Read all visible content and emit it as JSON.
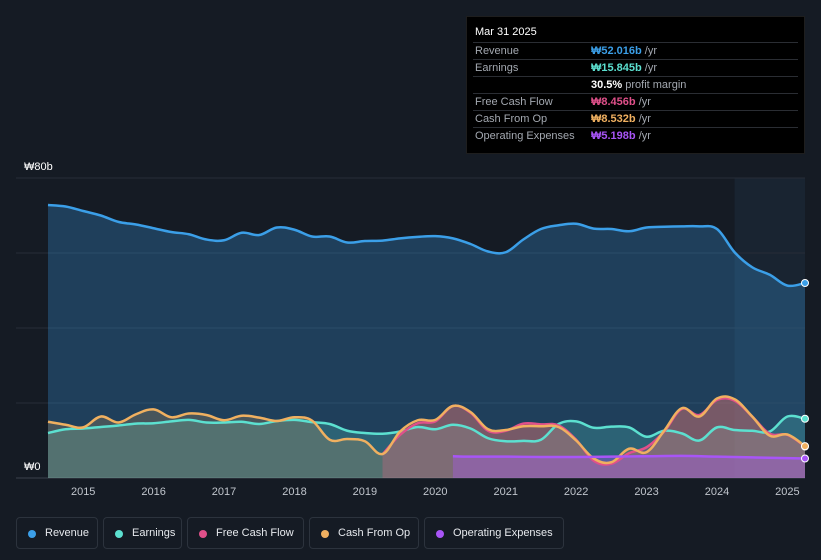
{
  "tooltip": {
    "date": "Mar 31 2025",
    "rows": [
      {
        "label": "Revenue",
        "value": "₩52.016b",
        "unit": "/yr",
        "color": "#3b9fe8"
      },
      {
        "label": "Earnings",
        "value": "₩15.845b",
        "unit": "/yr",
        "color": "#5ce0d0"
      },
      {
        "label": "",
        "value": "30.5%",
        "unit": "profit margin",
        "color": "#ffffff"
      },
      {
        "label": "Free Cash Flow",
        "value": "₩8.456b",
        "unit": "/yr",
        "color": "#e0508a"
      },
      {
        "label": "Cash From Op",
        "value": "₩8.532b",
        "unit": "/yr",
        "color": "#f0b060"
      },
      {
        "label": "Operating Expenses",
        "value": "₩5.198b",
        "unit": "/yr",
        "color": "#a855f7"
      }
    ]
  },
  "legend": [
    {
      "label": "Revenue",
      "color": "#3b9fe8"
    },
    {
      "label": "Earnings",
      "color": "#5ce0d0"
    },
    {
      "label": "Free Cash Flow",
      "color": "#e0508a"
    },
    {
      "label": "Cash From Op",
      "color": "#f0b060"
    },
    {
      "label": "Operating Expenses",
      "color": "#a855f7"
    }
  ],
  "chart_data": {
    "type": "area",
    "y_top_label": "₩80b",
    "y_bottom_label": "₩0",
    "ylim": [
      0,
      80
    ],
    "xlim": [
      2014.5,
      2025.25
    ],
    "x_ticks": [
      "2015",
      "2016",
      "2017",
      "2018",
      "2019",
      "2020",
      "2021",
      "2022",
      "2023",
      "2024",
      "2025"
    ],
    "forecast_start": 2024.25,
    "series": [
      {
        "name": "Revenue",
        "color": "#3b9fe8",
        "x": [
          2014.5,
          2014.75,
          2015.0,
          2015.25,
          2015.5,
          2015.75,
          2016.0,
          2016.25,
          2016.5,
          2016.75,
          2017.0,
          2017.25,
          2017.5,
          2017.75,
          2018.0,
          2018.25,
          2018.5,
          2018.75,
          2019.0,
          2019.25,
          2019.5,
          2019.75,
          2020.0,
          2020.25,
          2020.5,
          2020.75,
          2021.0,
          2021.25,
          2021.5,
          2021.75,
          2022.0,
          2022.25,
          2022.5,
          2022.75,
          2023.0,
          2023.25,
          2023.5,
          2023.75,
          2024.0,
          2024.25,
          2024.5,
          2024.75,
          2025.0,
          2025.25
        ],
        "y": [
          72.8,
          72.4,
          71.2,
          70,
          68.3,
          67.6,
          66.6,
          65.6,
          65,
          63.6,
          63.4,
          65.4,
          64.8,
          66.8,
          66.2,
          64.4,
          64.4,
          62.8,
          63.2,
          63.3,
          63.9,
          64.3,
          64.5,
          63.9,
          62.4,
          60.4,
          60.2,
          63.6,
          66.4,
          67.4,
          67.8,
          66.5,
          66.4,
          65.8,
          66.8,
          67,
          67.1,
          67.1,
          66.4,
          60.2,
          56.2,
          54.2,
          51.3,
          52
        ]
      },
      {
        "name": "Earnings",
        "color": "#5ce0d0",
        "x": [
          2014.5,
          2014.75,
          2015.0,
          2015.25,
          2015.5,
          2015.75,
          2016.0,
          2016.25,
          2016.5,
          2016.75,
          2017.0,
          2017.25,
          2017.5,
          2017.75,
          2018.0,
          2018.25,
          2018.5,
          2018.75,
          2019.0,
          2019.25,
          2019.5,
          2019.75,
          2020.0,
          2020.25,
          2020.5,
          2020.75,
          2021.0,
          2021.25,
          2021.5,
          2021.75,
          2022.0,
          2022.25,
          2022.5,
          2022.75,
          2023.0,
          2023.25,
          2023.5,
          2023.75,
          2024.0,
          2024.25,
          2024.5,
          2024.75,
          2025.0,
          2025.25
        ],
        "y": [
          12,
          13,
          13.2,
          13.6,
          14,
          14.5,
          14.6,
          15.1,
          15.5,
          14.8,
          14.8,
          15,
          14.4,
          15.2,
          15.5,
          14.9,
          14.4,
          12.6,
          12,
          11.8,
          12.4,
          13.6,
          13,
          14.2,
          13.2,
          10.6,
          9.8,
          9.9,
          10.2,
          14.4,
          15.1,
          13.4,
          13.7,
          13.5,
          11,
          12.6,
          11.9,
          10,
          13.5,
          12.8,
          12.6,
          12.4,
          16.4,
          15.8
        ]
      },
      {
        "name": "Free Cash Flow",
        "color": "#e0508a",
        "x": [
          2019.25,
          2019.5,
          2019.75,
          2020.0,
          2020.25,
          2020.5,
          2020.75,
          2021.0,
          2021.25,
          2021.5,
          2021.75,
          2022.0,
          2022.25,
          2022.5,
          2022.75,
          2023.0,
          2023.25,
          2023.5,
          2023.75,
          2024.0,
          2024.25,
          2024.5,
          2024.75,
          2025.0,
          2025.25
        ],
        "y": [
          6.3,
          11.5,
          14.6,
          15.1,
          19.2,
          17.4,
          12.6,
          12.6,
          14.5,
          14.3,
          14,
          10.2,
          4.6,
          3.8,
          6.6,
          8.2,
          12.4,
          18.4,
          16.8,
          20.8,
          20.6,
          16.4,
          11.8,
          11.5,
          8.4
        ]
      },
      {
        "name": "Cash From Op",
        "color": "#f0b060",
        "x": [
          2014.5,
          2014.75,
          2015.0,
          2015.25,
          2015.5,
          2015.75,
          2016.0,
          2016.25,
          2016.5,
          2016.75,
          2017.0,
          2017.25,
          2017.5,
          2017.75,
          2018.0,
          2018.25,
          2018.5,
          2018.75,
          2019.0,
          2019.25,
          2019.5,
          2019.75,
          2020.0,
          2020.25,
          2020.5,
          2020.75,
          2021.0,
          2021.25,
          2021.5,
          2021.75,
          2022.0,
          2022.25,
          2022.5,
          2022.75,
          2023.0,
          2023.25,
          2023.5,
          2023.75,
          2024.0,
          2024.25,
          2024.5,
          2024.75,
          2025.0,
          2025.25
        ],
        "y": [
          15,
          14.2,
          13.5,
          16.4,
          14.8,
          17,
          18.3,
          16.2,
          17.2,
          16.8,
          15.4,
          16.6,
          16.1,
          15.2,
          16.2,
          15.3,
          10.2,
          10.4,
          9.8,
          6.4,
          12.4,
          15.4,
          15.5,
          19.2,
          17.6,
          13,
          12.8,
          13.8,
          13.8,
          13.6,
          10,
          5.2,
          4.2,
          7.8,
          6.9,
          12.6,
          18.6,
          16.4,
          21.2,
          21,
          16.4,
          11.3,
          11.6,
          8.5
        ]
      },
      {
        "name": "Operating Expenses",
        "color": "#a855f7",
        "x": [
          2020.25,
          2020.5,
          2021.0,
          2021.5,
          2022.0,
          2022.5,
          2023.0,
          2023.5,
          2024.0,
          2024.5,
          2025.0,
          2025.25
        ],
        "y": [
          5.8,
          5.7,
          5.7,
          5.6,
          5.6,
          5.7,
          5.8,
          5.9,
          5.7,
          5.5,
          5.3,
          5.2
        ]
      }
    ]
  }
}
